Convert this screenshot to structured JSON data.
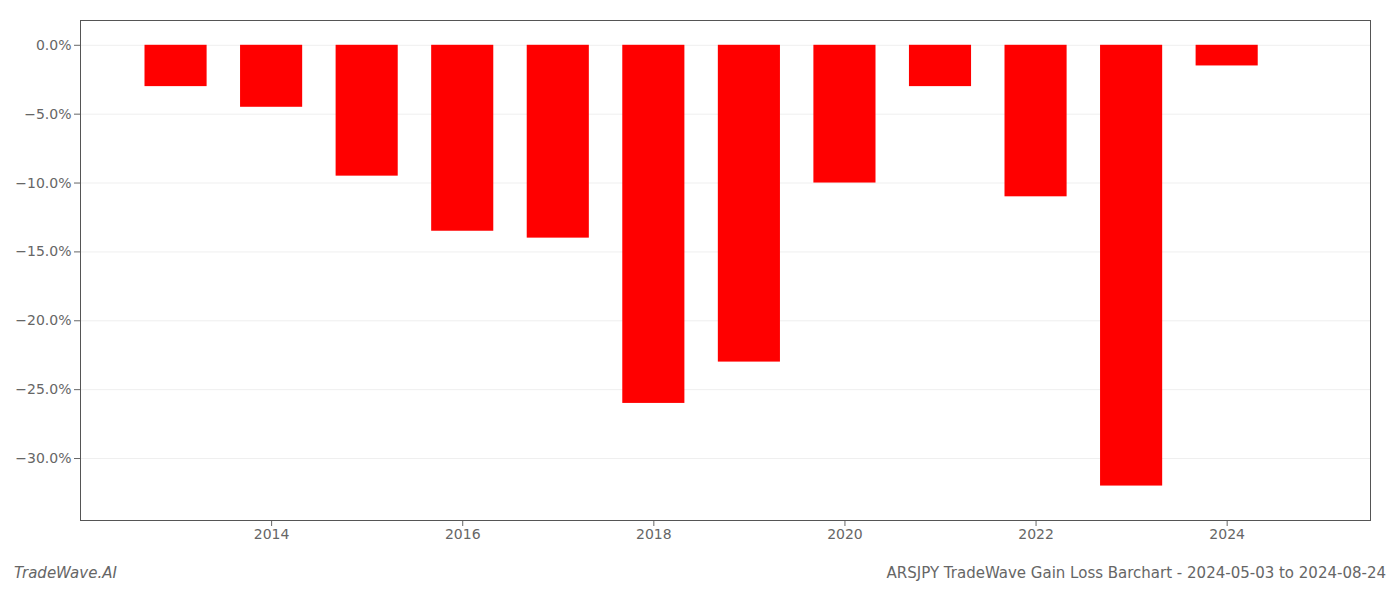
{
  "chart_data": {
    "type": "bar",
    "title": "ARSJPY TradeWave Gain Loss Barchart - 2024-05-03 to 2024-08-24",
    "annotations": [
      "TradeWave.AI"
    ],
    "x": [
      2013,
      2014,
      2015,
      2016,
      2017,
      2018,
      2019,
      2020,
      2021,
      2022,
      2023,
      2024
    ],
    "values": [
      -3.0,
      -4.5,
      -9.5,
      -13.5,
      -14.0,
      -26.0,
      -23.0,
      -10.0,
      -3.0,
      -11.0,
      -32.0,
      -1.5
    ],
    "color": "#ff0000",
    "xlim": [
      2012.0,
      2025.5
    ],
    "xticks": [
      2014,
      2016,
      2018,
      2020,
      2022,
      2024
    ],
    "ylim": [
      -34.5,
      1.8
    ],
    "yticks": [
      {
        "value": 0.0,
        "label": "0.0%"
      },
      {
        "value": -5.0,
        "label": "−5.0%"
      },
      {
        "value": -10.0,
        "label": "−10.0%"
      },
      {
        "value": -15.0,
        "label": "−15.0%"
      },
      {
        "value": -20.0,
        "label": "−20.0%"
      },
      {
        "value": -25.0,
        "label": "−25.0%"
      },
      {
        "value": -30.0,
        "label": "−30.0%"
      }
    ],
    "grid": true
  }
}
